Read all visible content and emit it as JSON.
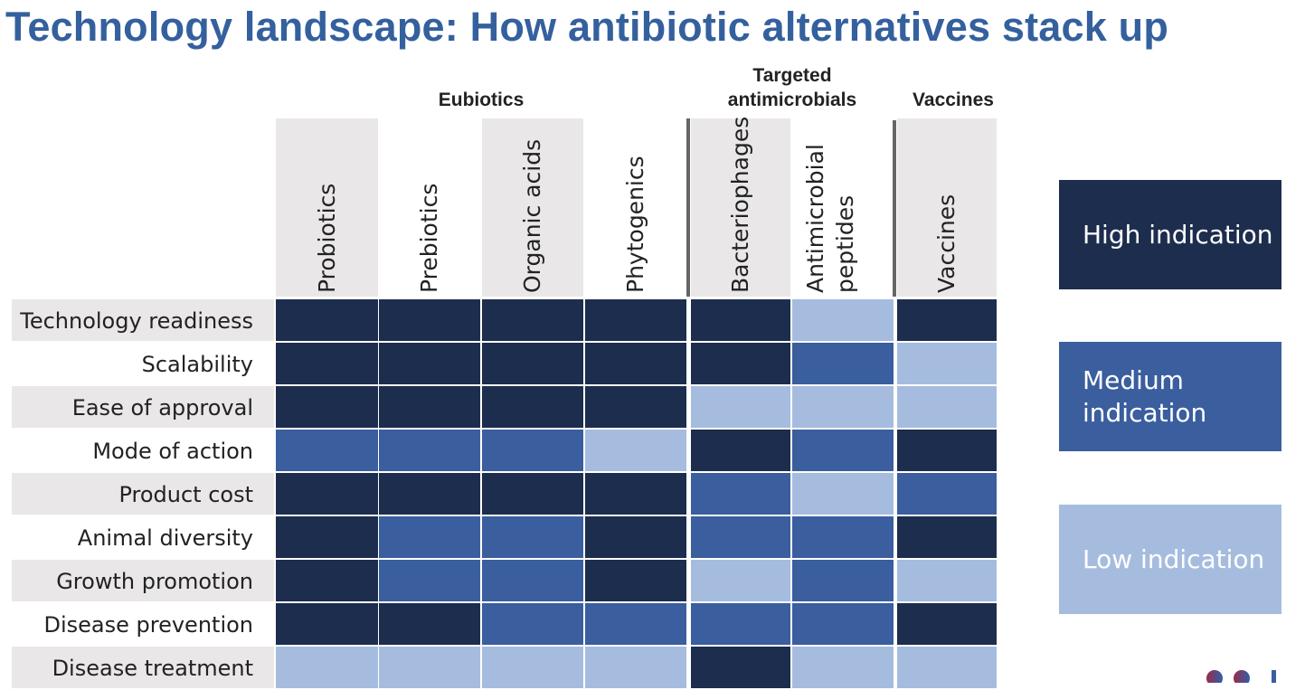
{
  "title": "Technology landscape: How antibiotic alternatives stack up",
  "colors": {
    "high": "#1d2d4e",
    "medium": "#3a5e9e",
    "low": "#a6bcdf",
    "header_gray": "#e9e7e8",
    "title": "#34609e"
  },
  "chart_data": {
    "type": "heatmap",
    "title": "Technology landscape: How antibiotic alternatives stack up",
    "groups": [
      {
        "label": "Eubiotics",
        "columns": [
          "Probiotics",
          "Prebiotics",
          "Organic acids",
          "Phytogenics"
        ]
      },
      {
        "label": "Targeted\nantimicrobials",
        "columns": [
          "Bacteriophages",
          "Antimicrobial\npeptides"
        ]
      },
      {
        "label": "Vaccines",
        "columns": [
          "Vaccines"
        ]
      }
    ],
    "columns": [
      "Probiotics",
      "Prebiotics",
      "Organic acids",
      "Phytogenics",
      "Bacteriophages",
      "Antimicrobial\npeptides",
      "Vaccines"
    ],
    "rows": [
      "Technology readiness",
      "Scalability",
      "Ease of approval",
      "Mode of action",
      "Product cost",
      "Animal diversity",
      "Growth promotion",
      "Disease prevention",
      "Disease treatment"
    ],
    "values": [
      [
        "high",
        "high",
        "high",
        "high",
        "high",
        "low",
        "high"
      ],
      [
        "high",
        "high",
        "high",
        "high",
        "high",
        "medium",
        "low"
      ],
      [
        "high",
        "high",
        "high",
        "high",
        "low",
        "low",
        "low"
      ],
      [
        "medium",
        "medium",
        "medium",
        "low",
        "high",
        "medium",
        "high"
      ],
      [
        "high",
        "high",
        "high",
        "high",
        "medium",
        "low",
        "medium"
      ],
      [
        "high",
        "medium",
        "medium",
        "high",
        "medium",
        "medium",
        "high"
      ],
      [
        "high",
        "medium",
        "medium",
        "high",
        "low",
        "medium",
        "low"
      ],
      [
        "high",
        "high",
        "medium",
        "medium",
        "medium",
        "medium",
        "high"
      ],
      [
        "low",
        "low",
        "low",
        "low",
        "high",
        "low",
        "low"
      ]
    ],
    "legend": [
      {
        "level": "high",
        "label": "High indication"
      },
      {
        "level": "medium",
        "label": "Medium\nindication"
      },
      {
        "level": "low",
        "label": "Low indication"
      }
    ],
    "legend_position": "right"
  }
}
